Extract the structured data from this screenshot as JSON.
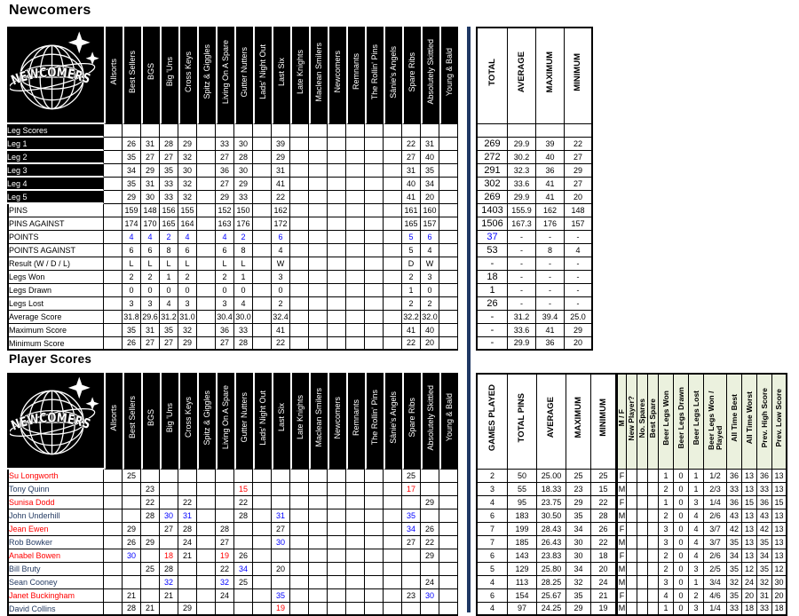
{
  "titles": {
    "page": "Newcomers",
    "players_section": "Player Scores"
  },
  "logo": {
    "label": "NEWCOMERS",
    "sparkle_icon": "four-point-star",
    "globe_icon": "wireframe-globe"
  },
  "colors": {
    "divider": "#1F3864",
    "highlight_high": "#0000FF",
    "highlight_low": "#FF0000",
    "female_name": "#FF0000",
    "male_name": "#263C63",
    "header_bg": "#000000",
    "green_header": "#EBF1DE"
  },
  "teams": [
    "Allsorts",
    "Best Sellers",
    "BGS",
    "Big 'Uns",
    "Cross Keys",
    "Spitz & Giggles",
    "Living On A Spare",
    "Gutter Nutters",
    "Lads' Night Out",
    "Last Six",
    "Late Knights",
    "Maclean Smilers",
    "Newcomers",
    "Remnants",
    "The Rollin' Pins",
    "Sânie's Angels",
    "Spare Ribs",
    "Absolutely Skittled",
    "Young & Bald"
  ],
  "leg_table": {
    "corner_label": "Leg Scores",
    "summary_headers": [
      "TOTAL",
      "AVERAGE",
      "MAXIMUM",
      "MINIMUM"
    ],
    "rows": [
      {
        "label": "Leg 1",
        "black_label": true,
        "cells": [
          "",
          "26",
          "31",
          "28",
          "29",
          "",
          "33",
          "30",
          "",
          "39",
          "",
          "",
          "",
          "",
          "",
          "",
          "22",
          "31",
          ""
        ],
        "summary": [
          "269",
          "29.9",
          "39",
          "22"
        ]
      },
      {
        "label": "Leg 2",
        "black_label": true,
        "cells": [
          "",
          "35",
          "27",
          "27",
          "32",
          "",
          "27",
          "28",
          "",
          "29",
          "",
          "",
          "",
          "",
          "",
          "",
          "27",
          "40",
          ""
        ],
        "summary": [
          "272",
          "30.2",
          "40",
          "27"
        ]
      },
      {
        "label": "Leg 3",
        "black_label": true,
        "cells": [
          "",
          "34",
          "29",
          "35",
          "30",
          "",
          "36",
          "30",
          "",
          "31",
          "",
          "",
          "",
          "",
          "",
          "",
          "31",
          "35",
          ""
        ],
        "summary": [
          "291",
          "32.3",
          "36",
          "29"
        ]
      },
      {
        "label": "Leg 4",
        "black_label": true,
        "cells": [
          "",
          "35",
          "31",
          "33",
          "32",
          "",
          "27",
          "29",
          "",
          "41",
          "",
          "",
          "",
          "",
          "",
          "",
          "40",
          "34",
          ""
        ],
        "summary": [
          "302",
          "33.6",
          "41",
          "27"
        ]
      },
      {
        "label": "Leg 5",
        "black_label": true,
        "cells": [
          "",
          "29",
          "30",
          "33",
          "32",
          "",
          "29",
          "33",
          "",
          "22",
          "",
          "",
          "",
          "",
          "",
          "",
          "41",
          "20",
          ""
        ],
        "summary": [
          "269",
          "29.9",
          "41",
          "20"
        ]
      },
      {
        "label": "PINS",
        "cells": [
          "",
          "159",
          "148",
          "156",
          "155",
          "",
          "152",
          "150",
          "",
          "162",
          "",
          "",
          "",
          "",
          "",
          "",
          "161",
          "160",
          ""
        ],
        "summary": [
          "1403",
          "155.9",
          "162",
          "148"
        ]
      },
      {
        "label": "PINS AGAINST",
        "cells": [
          "",
          "174",
          "170",
          "165",
          "164",
          "",
          "163",
          "176",
          "",
          "172",
          "",
          "",
          "",
          "",
          "",
          "",
          "165",
          "157",
          ""
        ],
        "summary": [
          "1506",
          "167.3",
          "176",
          "157"
        ]
      },
      {
        "label": "POINTS",
        "style": "blue",
        "cells": [
          "",
          "4",
          "4",
          "2",
          "4",
          "",
          "4",
          "2",
          "",
          "6",
          "",
          "",
          "",
          "",
          "",
          "",
          "5",
          "6",
          ""
        ],
        "summary": [
          "37",
          "-",
          "-",
          "-"
        ]
      },
      {
        "label": "POINTS AGAINST",
        "style": "bold",
        "cells": [
          "",
          "6",
          "6",
          "8",
          "6",
          "",
          "6",
          "8",
          "",
          "4",
          "",
          "",
          "",
          "",
          "",
          "",
          "5",
          "4",
          ""
        ],
        "summary": [
          "53",
          "-",
          "8",
          "4"
        ]
      },
      {
        "label": "Result (W / D / L)",
        "style": "bold",
        "cells": [
          "",
          "L",
          "L",
          "L",
          "L",
          "",
          "L",
          "L",
          "",
          "W",
          "",
          "",
          "",
          "",
          "",
          "",
          "D",
          "W",
          ""
        ],
        "summary": [
          "-",
          "-",
          "-",
          "-"
        ]
      },
      {
        "label": "Legs Won",
        "cells": [
          "",
          "2",
          "2",
          "1",
          "2",
          "",
          "2",
          "1",
          "",
          "3",
          "",
          "",
          "",
          "",
          "",
          "",
          "2",
          "3",
          ""
        ],
        "summary": [
          "18",
          "-",
          "-",
          "-"
        ]
      },
      {
        "label": "Legs Drawn",
        "cells": [
          "",
          "0",
          "0",
          "0",
          "0",
          "",
          "0",
          "0",
          "",
          "0",
          "",
          "",
          "",
          "",
          "",
          "",
          "1",
          "0",
          ""
        ],
        "summary": [
          "1",
          "-",
          "-",
          "-"
        ]
      },
      {
        "label": "Legs Lost",
        "cells": [
          "",
          "3",
          "3",
          "4",
          "3",
          "",
          "3",
          "4",
          "",
          "2",
          "",
          "",
          "",
          "",
          "",
          "",
          "2",
          "2",
          ""
        ],
        "summary": [
          "26",
          "-",
          "-",
          "-"
        ]
      },
      {
        "label": "Average Score",
        "cells": [
          "",
          "31.8",
          "29.6",
          "31.2",
          "31.0",
          "",
          "30.4",
          "30.0",
          "",
          "32.4",
          "",
          "",
          "",
          "",
          "",
          "",
          "32.2",
          "32.0",
          ""
        ],
        "summary": [
          "-",
          "31.2",
          "39.4",
          "25.0"
        ]
      },
      {
        "label": "Maximum Score",
        "cells": [
          "",
          "35",
          "31",
          "35",
          "32",
          "",
          "36",
          "33",
          "",
          "41",
          "",
          "",
          "",
          "",
          "",
          "",
          "41",
          "40",
          ""
        ],
        "summary": [
          "-",
          "33.6",
          "41",
          "29"
        ]
      },
      {
        "label": "Minimum Score",
        "cells": [
          "",
          "26",
          "27",
          "27",
          "29",
          "",
          "27",
          "28",
          "",
          "22",
          "",
          "",
          "",
          "",
          "",
          "",
          "22",
          "20",
          ""
        ],
        "summary": [
          "-",
          "29.9",
          "36",
          "20"
        ]
      }
    ]
  },
  "player_table": {
    "summary_headers": [
      "GAMES PLAYED",
      "TOTAL PINS",
      "AVERAGE",
      "MAXIMUM",
      "MINIMUM"
    ],
    "extra_headers": [
      "M / F",
      "New Player?",
      "No. Spares",
      "Best Spare",
      "Beer Legs Won",
      "Beer Legs Drawn",
      "Beer Legs Lost",
      "Beer Legs Won / Played",
      "All Time Best",
      "All Time Worst",
      "Prev. High Score",
      "Prev. Low Score"
    ],
    "players": [
      {
        "name": "Su Longworth",
        "gender": "F",
        "scores": [
          "",
          "25",
          "",
          "",
          "",
          "",
          "",
          "",
          "",
          "",
          "",
          "",
          "",
          "",
          "",
          "",
          "25",
          "",
          ""
        ],
        "summary": [
          "2",
          "50",
          "25.00",
          "25",
          "25"
        ],
        "extras": [
          "F",
          "",
          "",
          "",
          "1",
          "0",
          "1",
          "1/2",
          "36",
          "13",
          "36",
          "13"
        ]
      },
      {
        "name": "Tony Quinn",
        "gender": "M",
        "scores": [
          "",
          "",
          "23",
          "",
          "",
          "",
          "",
          {
            "v": "15",
            "c": "red"
          },
          "",
          "",
          "",
          "",
          "",
          "",
          "",
          "",
          {
            "v": "17",
            "c": "red"
          },
          "",
          ""
        ],
        "summary": [
          "3",
          "55",
          "18.33",
          "23",
          "15"
        ],
        "extras": [
          "M",
          "",
          "",
          "",
          "2",
          "0",
          "1",
          "2/3",
          "33",
          "13",
          "33",
          "13"
        ]
      },
      {
        "name": "Sunisa Dodd",
        "gender": "F",
        "scores": [
          "",
          "",
          "22",
          "",
          "22",
          "",
          "",
          "22",
          "",
          "",
          "",
          "",
          "",
          "",
          "",
          "",
          "",
          "29",
          ""
        ],
        "summary": [
          "4",
          "95",
          "23.75",
          "29",
          "22"
        ],
        "extras": [
          "F",
          "",
          "",
          "",
          "1",
          "0",
          "3",
          "1/4",
          "36",
          "15",
          "36",
          "15"
        ]
      },
      {
        "name": "John Underhill",
        "gender": "M",
        "scores": [
          "",
          "",
          "28",
          {
            "v": "30",
            "c": "blue"
          },
          {
            "v": "31",
            "c": "blue"
          },
          "",
          "",
          "28",
          "",
          {
            "v": "31",
            "c": "blue"
          },
          "",
          "",
          "",
          "",
          "",
          "",
          {
            "v": "35",
            "c": "blue"
          },
          "",
          ""
        ],
        "summary": [
          "6",
          "183",
          "30.50",
          "35",
          "28"
        ],
        "extras": [
          "M",
          "",
          "",
          "",
          "2",
          "0",
          "4",
          "2/6",
          "43",
          "13",
          "43",
          "13"
        ]
      },
      {
        "name": "Jean Ewen",
        "gender": "F",
        "scores": [
          "",
          "29",
          "",
          "27",
          "28",
          "",
          "28",
          "",
          "",
          "27",
          "",
          "",
          "",
          "",
          "",
          "",
          {
            "v": "34",
            "c": "blue"
          },
          "26",
          ""
        ],
        "summary": [
          "7",
          "199",
          "28.43",
          "34",
          "26"
        ],
        "extras": [
          "F",
          "",
          "",
          "",
          "3",
          "0",
          "4",
          "3/7",
          "42",
          "13",
          "42",
          "13"
        ]
      },
      {
        "name": "Rob Bowker",
        "gender": "M",
        "scores": [
          "",
          "26",
          "29",
          "",
          "24",
          "",
          "27",
          "",
          "",
          {
            "v": "30",
            "c": "blue"
          },
          "",
          "",
          "",
          "",
          "",
          "",
          "27",
          "22",
          ""
        ],
        "summary": [
          "7",
          "185",
          "26.43",
          "30",
          "22"
        ],
        "extras": [
          "M",
          "",
          "",
          "",
          "3",
          "0",
          "4",
          "3/7",
          "35",
          "13",
          "35",
          "13"
        ]
      },
      {
        "name": "Anabel Bowen",
        "gender": "F",
        "scores": [
          "",
          {
            "v": "30",
            "c": "blue"
          },
          "",
          {
            "v": "18",
            "c": "red"
          },
          "21",
          "",
          {
            "v": "19",
            "c": "red"
          },
          "26",
          "",
          "",
          "",
          "",
          "",
          "",
          "",
          "",
          "",
          "29",
          ""
        ],
        "summary": [
          "6",
          "143",
          "23.83",
          "30",
          "18"
        ],
        "extras": [
          "F",
          "",
          "",
          "",
          "2",
          "0",
          "4",
          "2/6",
          "34",
          "13",
          "34",
          "13"
        ]
      },
      {
        "name": "Bill Bruty",
        "gender": "M",
        "scores": [
          "",
          "",
          "25",
          "28",
          "",
          "",
          "22",
          {
            "v": "34",
            "c": "blue"
          },
          "",
          "20",
          "",
          "",
          "",
          "",
          "",
          "",
          "",
          "",
          ""
        ],
        "summary": [
          "5",
          "129",
          "25.80",
          "34",
          "20"
        ],
        "extras": [
          "M",
          "",
          "",
          "",
          "2",
          "0",
          "3",
          "2/5",
          "35",
          "12",
          "35",
          "12"
        ]
      },
      {
        "name": "Sean Cooney",
        "gender": "M",
        "scores": [
          "",
          "",
          "",
          {
            "v": "32",
            "c": "blue"
          },
          "",
          "",
          {
            "v": "32",
            "c": "blue"
          },
          "25",
          "",
          "",
          "",
          "",
          "",
          "",
          "",
          "",
          "",
          "24",
          ""
        ],
        "summary": [
          "4",
          "113",
          "28.25",
          "32",
          "24"
        ],
        "extras": [
          "M",
          "",
          "",
          "",
          "3",
          "0",
          "1",
          "3/4",
          "32",
          "24",
          "32",
          "30"
        ]
      },
      {
        "name": "Janet Buckingham",
        "gender": "F",
        "scores": [
          "",
          "21",
          "",
          "21",
          "",
          "",
          "24",
          "",
          "",
          {
            "v": "35",
            "c": "blue"
          },
          "",
          "",
          "",
          "",
          "",
          "",
          "23",
          {
            "v": "30",
            "c": "blue"
          },
          ""
        ],
        "summary": [
          "6",
          "154",
          "25.67",
          "35",
          "21"
        ],
        "extras": [
          "F",
          "",
          "",
          "",
          "4",
          "0",
          "2",
          "4/6",
          "35",
          "20",
          "31",
          "20"
        ]
      },
      {
        "name": "David Collins",
        "gender": "M",
        "scores": [
          "",
          "28",
          "21",
          "",
          "29",
          "",
          "",
          "",
          "",
          {
            "v": "19",
            "c": "red"
          },
          "",
          "",
          "",
          "",
          "",
          "",
          "",
          "",
          ""
        ],
        "summary": [
          "4",
          "97",
          "24.25",
          "29",
          "19"
        ],
        "extras": [
          "M",
          "",
          "",
          "",
          "1",
          "0",
          "3",
          "1/4",
          "33",
          "18",
          "33",
          "18"
        ]
      }
    ]
  }
}
